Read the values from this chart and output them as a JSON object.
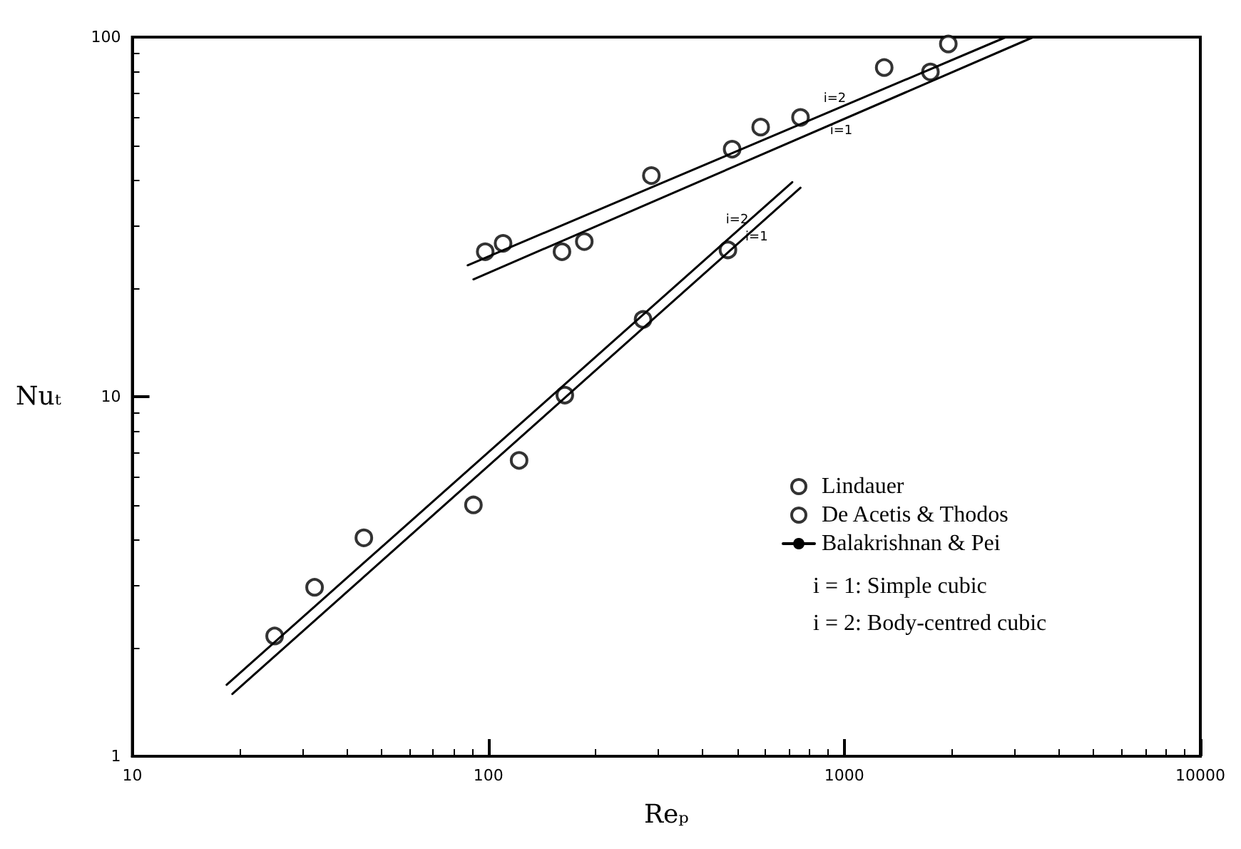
{
  "chart_data": {
    "type": "scatter",
    "xlabel": "Reₚ",
    "ylabel": "Nuₜ",
    "log": "xy",
    "xlim": [
      10,
      10000
    ],
    "ylim": [
      1,
      100
    ],
    "xticks": [
      10,
      100,
      1000,
      10000
    ],
    "yticks": [
      1,
      10,
      100
    ],
    "grid": false,
    "legend": "right",
    "marker": "circle",
    "series": [
      {
        "name": "Lindauer",
        "color": "#000000",
        "x": [
          25.1,
          32.5,
          44.7,
          90.8,
          122,
          164,
          272,
          471
        ],
        "values": [
          2.16,
          2.95,
          4.05,
          5.0,
          6.65,
          10.1,
          16.4,
          25.6
        ]
      },
      {
        "name": "De Acetis & Thodos",
        "color": "#000000",
        "x": [
          98,
          110,
          161,
          186,
          287,
          484,
          582,
          753,
          1294,
          1745,
          1959
        ],
        "values": [
          25.3,
          26.7,
          25.3,
          27,
          41.2,
          48.8,
          56.2,
          59.8,
          82.3,
          80,
          95.7
        ]
      },
      {
        "name": "Balakrishnan & Pei",
        "type": "line",
        "marker": "none",
        "line_style": "solid",
        "color": "#000000",
        "x": [
          18.4,
          714
        ],
        "values": [
          1.58,
          39.5
        ]
      },
      {
        "type": "line",
        "marker": "none",
        "line_style": "solid",
        "color": "#000000",
        "x": [
          19.1,
          753
        ],
        "values": [
          1.49,
          38.1
        ]
      },
      {
        "type": "line",
        "marker": "none",
        "line_style": "solid",
        "color": "#000000",
        "x": [
          87.5,
          2845
        ],
        "values": [
          23.2,
          100
        ]
      },
      {
        "type": "line",
        "marker": "none",
        "line_style": "solid",
        "color": "#000000",
        "x": [
          90.8,
          3396
        ],
        "values": [
          21.2,
          100
        ]
      }
    ],
    "annotations": [
      "i = 1: Simple cubic",
      "i = 2: Body-centred cubic",
      {
        "text": "i=2",
        "x": 940,
        "y": 62.8
      },
      {
        "text": "i=1",
        "x": 980,
        "y": 58.7
      },
      {
        "text": "i=2",
        "x": 500,
        "y": 28.9
      },
      {
        "text": "i=1",
        "x": 567,
        "y": 29.7
      }
    ]
  }
}
